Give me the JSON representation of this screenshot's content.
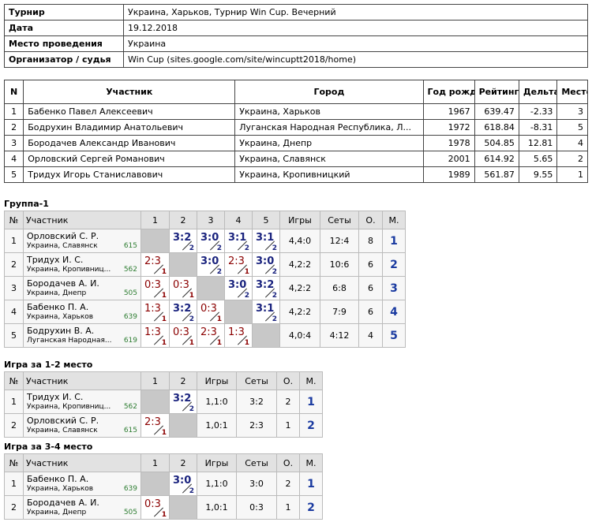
{
  "info": {
    "rows": [
      [
        "Турнир",
        "Украина, Харьков, Турнир Win Cup. Вечерний"
      ],
      [
        "Дата",
        "19.12.2018"
      ],
      [
        "Место проведения",
        "Украина"
      ],
      [
        "Организатор / судья",
        "Win Cup (sites.google.com/site/wincuptt2018/home)"
      ]
    ]
  },
  "participants": {
    "headers": [
      "N",
      "Участник",
      "Город",
      "Год рожд.",
      "Рейтинг",
      "Дельта",
      "Место"
    ],
    "rows": [
      [
        "1",
        "Бабенко Павел Алексеевич",
        "Украина, Харьков",
        "1967",
        "639.47",
        "-2.33",
        "3"
      ],
      [
        "2",
        "Бодрухин Владимир Анатольевич",
        "Луганская Народная Республика, Л...",
        "1972",
        "618.84",
        "-8.31",
        "5"
      ],
      [
        "3",
        "Бородачев Александр Иванович",
        "Украина, Днепр",
        "1978",
        "504.85",
        "12.81",
        "4"
      ],
      [
        "4",
        "Орловский Сергей Романович",
        "Украина, Славянск",
        "2001",
        "614.92",
        "5.65",
        "2"
      ],
      [
        "5",
        "Тридух Игорь Станиславович",
        "Украина, Кропивницкий",
        "1989",
        "561.87",
        "9.55",
        "1"
      ]
    ]
  },
  "groups": [
    {
      "title": "Группа-1",
      "headers": [
        "№",
        "Участник",
        "1",
        "2",
        "3",
        "4",
        "5",
        "Игры",
        "Сеты",
        "О.",
        "М."
      ],
      "rows": [
        {
          "n": "1",
          "name": "Орловский С. Р.",
          "city": "Украина, Славянск",
          "rating": "615",
          "cells": [
            null,
            {
              "score": "3:2",
              "game": "2",
              "win": true
            },
            {
              "score": "3:0",
              "game": "2",
              "win": true
            },
            {
              "score": "3:1",
              "game": "2",
              "win": true
            },
            {
              "score": "3:1",
              "game": "2",
              "win": true
            }
          ],
          "games": "4,4:0",
          "sets": "12:4",
          "points": "8",
          "place": "1"
        },
        {
          "n": "2",
          "name": "Тридух И. С.",
          "city": "Украина, Кропивниц...",
          "rating": "562",
          "cells": [
            {
              "score": "2:3",
              "game": "1",
              "win": false
            },
            null,
            {
              "score": "3:0",
              "game": "2",
              "win": true
            },
            {
              "score": "2:3",
              "game": "1",
              "win": false
            },
            {
              "score": "3:0",
              "game": "2",
              "win": true
            }
          ],
          "games": "4,2:2",
          "sets": "10:6",
          "points": "6",
          "place": "2"
        },
        {
          "n": "3",
          "name": "Бородачев А. И.",
          "city": "Украина, Днепр",
          "rating": "505",
          "cells": [
            {
              "score": "0:3",
              "game": "1",
              "win": false
            },
            {
              "score": "0:3",
              "game": "1",
              "win": false
            },
            null,
            {
              "score": "3:0",
              "game": "2",
              "win": true
            },
            {
              "score": "3:2",
              "game": "2",
              "win": true
            }
          ],
          "games": "4,2:2",
          "sets": "6:8",
          "points": "6",
          "place": "3"
        },
        {
          "n": "4",
          "name": "Бабенко П. А.",
          "city": "Украина, Харьков",
          "rating": "639",
          "cells": [
            {
              "score": "1:3",
              "game": "1",
              "win": false
            },
            {
              "score": "3:2",
              "game": "2",
              "win": true
            },
            {
              "score": "0:3",
              "game": "1",
              "win": false
            },
            null,
            {
              "score": "3:1",
              "game": "2",
              "win": true
            }
          ],
          "games": "4,2:2",
          "sets": "7:9",
          "points": "6",
          "place": "4"
        },
        {
          "n": "5",
          "name": "Бодрухин В. А.",
          "city": "Луганская Народная...",
          "rating": "619",
          "cells": [
            {
              "score": "1:3",
              "game": "1",
              "win": false
            },
            {
              "score": "0:3",
              "game": "1",
              "win": false
            },
            {
              "score": "2:3",
              "game": "1",
              "win": false
            },
            {
              "score": "1:3",
              "game": "1",
              "win": false
            },
            null
          ],
          "games": "4,0:4",
          "sets": "4:12",
          "points": "4",
          "place": "5"
        }
      ]
    },
    {
      "title": "Игра за 1-2 место",
      "headers": [
        "№",
        "Участник",
        "1",
        "2",
        "Игры",
        "Сеты",
        "О.",
        "М."
      ],
      "rows": [
        {
          "n": "1",
          "name": "Тридух И. С.",
          "city": "Украина, Кропивниц...",
          "rating": "562",
          "cells": [
            null,
            {
              "score": "3:2",
              "game": "2",
              "win": true
            }
          ],
          "games": "1,1:0",
          "sets": "3:2",
          "points": "2",
          "place": "1"
        },
        {
          "n": "2",
          "name": "Орловский С. Р.",
          "city": "Украина, Славянск",
          "rating": "615",
          "cells": [
            {
              "score": "2:3",
              "game": "1",
              "win": false
            },
            null
          ],
          "games": "1,0:1",
          "sets": "2:3",
          "points": "1",
          "place": "2"
        }
      ]
    },
    {
      "title": "Игра за 3-4 место",
      "headers": [
        "№",
        "Участник",
        "1",
        "2",
        "Игры",
        "Сеты",
        "О.",
        "М."
      ],
      "rows": [
        {
          "n": "1",
          "name": "Бабенко П. А.",
          "city": "Украина, Харьков",
          "rating": "639",
          "cells": [
            null,
            {
              "score": "3:0",
              "game": "2",
              "win": true
            }
          ],
          "games": "1,1:0",
          "sets": "3:0",
          "points": "2",
          "place": "1"
        },
        {
          "n": "2",
          "name": "Бородачев А. И.",
          "city": "Украина, Днепр",
          "rating": "505",
          "cells": [
            {
              "score": "0:3",
              "game": "1",
              "win": false
            },
            null
          ],
          "games": "1,0:1",
          "sets": "0:3",
          "points": "1",
          "place": "2"
        }
      ]
    }
  ]
}
